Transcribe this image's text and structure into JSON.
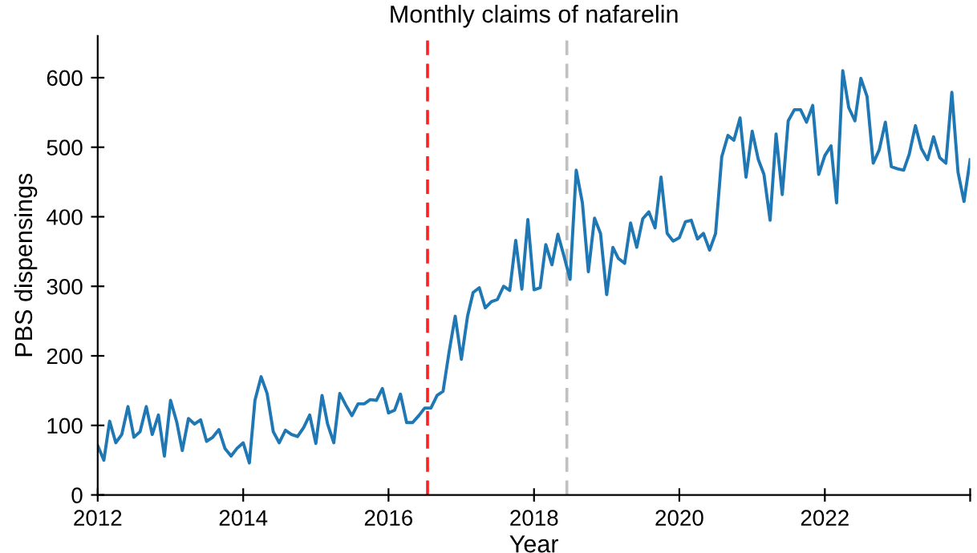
{
  "chart_data": {
    "type": "line",
    "title": "Monthly claims of nafarelin",
    "xlabel": "Year",
    "ylabel": "PBS dispensings",
    "x": [
      "2012-01",
      "2012-02",
      "2012-03",
      "2012-04",
      "2012-05",
      "2012-06",
      "2012-07",
      "2012-08",
      "2012-09",
      "2012-10",
      "2012-11",
      "2012-12",
      "2013-01",
      "2013-02",
      "2013-03",
      "2013-04",
      "2013-05",
      "2013-06",
      "2013-07",
      "2013-08",
      "2013-09",
      "2013-10",
      "2013-11",
      "2013-12",
      "2014-01",
      "2014-02",
      "2014-03",
      "2014-04",
      "2014-05",
      "2014-06",
      "2014-07",
      "2014-08",
      "2014-09",
      "2014-10",
      "2014-11",
      "2014-12",
      "2015-01",
      "2015-02",
      "2015-03",
      "2015-04",
      "2015-05",
      "2015-06",
      "2015-07",
      "2015-08",
      "2015-09",
      "2015-10",
      "2015-11",
      "2015-12",
      "2016-01",
      "2016-02",
      "2016-03",
      "2016-04",
      "2016-05",
      "2016-06",
      "2016-07",
      "2016-08",
      "2016-09",
      "2016-10",
      "2016-11",
      "2016-12",
      "2017-01",
      "2017-02",
      "2017-03",
      "2017-04",
      "2017-05",
      "2017-06",
      "2017-07",
      "2017-08",
      "2017-09",
      "2017-10",
      "2017-11",
      "2017-12",
      "2018-01",
      "2018-02",
      "2018-03",
      "2018-04",
      "2018-05",
      "2018-06",
      "2018-07",
      "2018-08",
      "2018-09",
      "2018-10",
      "2018-11",
      "2018-12",
      "2019-01",
      "2019-02",
      "2019-03",
      "2019-04",
      "2019-05",
      "2019-06",
      "2019-07",
      "2019-08",
      "2019-09",
      "2019-10",
      "2019-11",
      "2019-12",
      "2020-01",
      "2020-02",
      "2020-03",
      "2020-04",
      "2020-05",
      "2020-06",
      "2020-07",
      "2020-08",
      "2020-09",
      "2020-10",
      "2020-11",
      "2020-12",
      "2021-01",
      "2021-02",
      "2021-03",
      "2021-04",
      "2021-05",
      "2021-06",
      "2021-07",
      "2021-08",
      "2021-09",
      "2021-10",
      "2021-11",
      "2021-12",
      "2022-01",
      "2022-02",
      "2022-03",
      "2022-04",
      "2022-05",
      "2022-06",
      "2022-07",
      "2022-08",
      "2022-09",
      "2022-10",
      "2022-11",
      "2022-12",
      "2023-01",
      "2023-02",
      "2023-03",
      "2023-04",
      "2023-05",
      "2023-06",
      "2023-07",
      "2023-08",
      "2023-09",
      "2023-10",
      "2023-11",
      "2023-12",
      "2024-01"
    ],
    "series": [
      {
        "color": "#1f77b4",
        "values": [
          71,
          50,
          106,
          75,
          87,
          127,
          83,
          91,
          127,
          87,
          115,
          56,
          136,
          105,
          64,
          110,
          102,
          108,
          77,
          83,
          94,
          67,
          56,
          67,
          75,
          46,
          136,
          170,
          146,
          91,
          75,
          93,
          87,
          84,
          97,
          115,
          74,
          143,
          102,
          75,
          146,
          129,
          114,
          131,
          131,
          137,
          136,
          153,
          118,
          122,
          145,
          104,
          104,
          114,
          125,
          125,
          143,
          149,
          207,
          257,
          195,
          257,
          291,
          298,
          269,
          278,
          281,
          300,
          294,
          366,
          296,
          396,
          295,
          298,
          360,
          331,
          375,
          343,
          310,
          467,
          420,
          321,
          398,
          376,
          288,
          356,
          340,
          333,
          391,
          356,
          397,
          407,
          384,
          457,
          376,
          365,
          370,
          393,
          395,
          368,
          376,
          352,
          376,
          486,
          517,
          510,
          542,
          457,
          523,
          482,
          461,
          395,
          519,
          432,
          538,
          554,
          554,
          536,
          560,
          461,
          488,
          502,
          420,
          610,
          557,
          538,
          599,
          573,
          477,
          496,
          536,
          472,
          469,
          467,
          490,
          531,
          498,
          482,
          515,
          485,
          477,
          579,
          464,
          422,
          482
        ]
      }
    ],
    "xlim": [
      "2012-01-01",
      "2024-01-01"
    ],
    "xticks": [
      {
        "value": "2012",
        "label": "2012"
      },
      {
        "value": "2014",
        "label": "2014"
      },
      {
        "value": "2016",
        "label": "2016"
      },
      {
        "value": "2018",
        "label": "2018"
      },
      {
        "value": "2020",
        "label": "2020"
      },
      {
        "value": "2022",
        "label": "2022"
      },
      {
        "value": "2024",
        "label": null
      }
    ],
    "ylim": [
      0,
      660
    ],
    "yticks": [
      0,
      100,
      200,
      300,
      400,
      500,
      600
    ],
    "ref_lines": [
      {
        "axis": "x",
        "value": "2016-07-15",
        "color": "#ff2020",
        "line_style": "dashed"
      },
      {
        "axis": "x",
        "value": "2018-06-15",
        "color": "#c0c0c0",
        "line_style": "dashed"
      }
    ],
    "grid": false,
    "legend": false
  }
}
